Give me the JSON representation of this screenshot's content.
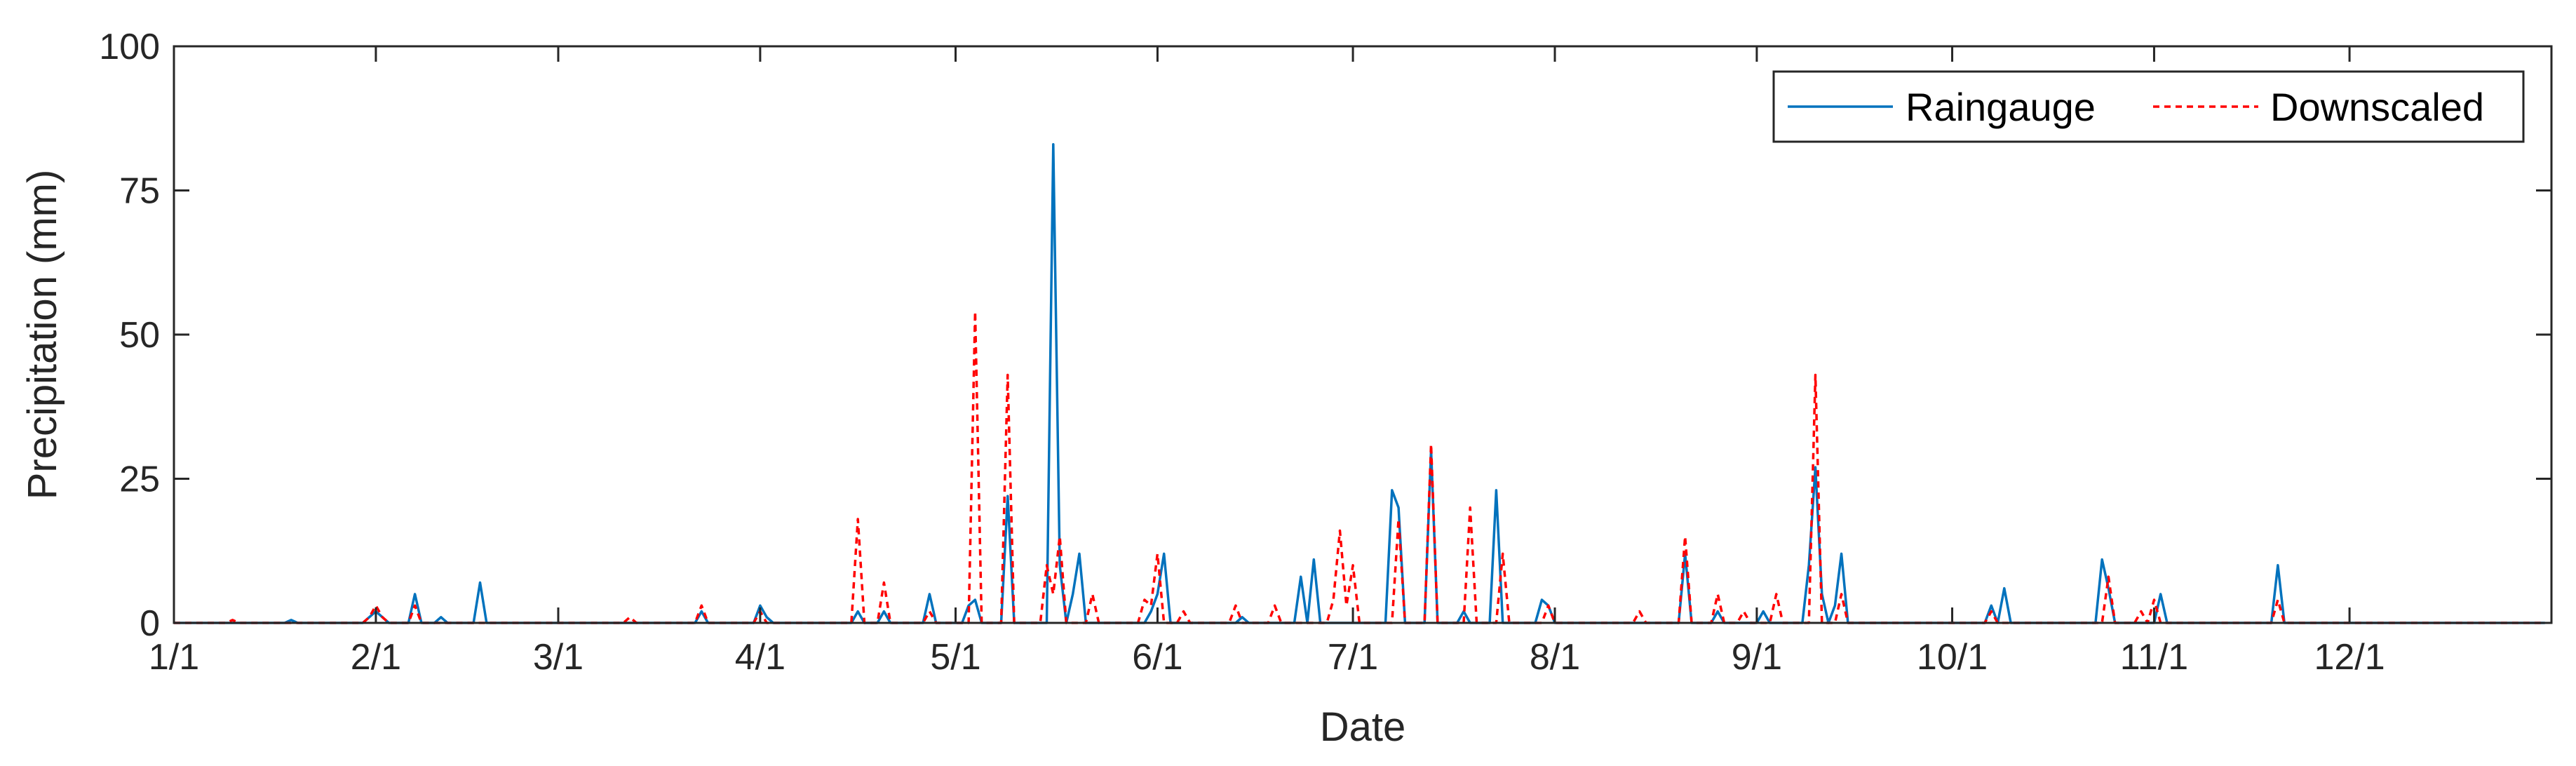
{
  "chart_data": {
    "type": "line",
    "title": "",
    "xlabel": "Date",
    "ylabel": "Precipitation (mm)",
    "xlim": [
      "1/1",
      "12/31"
    ],
    "ylim": [
      0,
      100
    ],
    "yticks": [
      0,
      25,
      50,
      75,
      100
    ],
    "xticks": [
      {
        "label": "1/1",
        "date": "1/1"
      },
      {
        "label": "2/1",
        "date": "2/1"
      },
      {
        "label": "3/1",
        "date": "3/1"
      },
      {
        "label": "4/1",
        "date": "4/1"
      },
      {
        "label": "5/1",
        "date": "5/1"
      },
      {
        "label": "6/1",
        "date": "6/1"
      },
      {
        "label": "7/1",
        "date": "7/1"
      },
      {
        "label": "8/1",
        "date": "8/1"
      },
      {
        "label": "9/1",
        "date": "9/1"
      },
      {
        "label": "10/1",
        "date": "10/1"
      },
      {
        "label": "11/1",
        "date": "11/1"
      },
      {
        "label": "12/1",
        "date": "12/1"
      }
    ],
    "grid": false,
    "legend_position": "top-right",
    "series": [
      {
        "name": "Raingauge",
        "color": "#0072BD",
        "style": "solid",
        "points": [
          [
            "1/1",
            0
          ],
          [
            "1/18",
            0
          ],
          [
            "1/19",
            0.5
          ],
          [
            "1/20",
            0
          ],
          [
            "1/30",
            0
          ],
          [
            "1/31",
            1
          ],
          [
            "2/1",
            2
          ],
          [
            "2/2",
            1
          ],
          [
            "2/3",
            0
          ],
          [
            "2/6",
            0
          ],
          [
            "2/7",
            5
          ],
          [
            "2/8",
            0
          ],
          [
            "2/10",
            0
          ],
          [
            "2/11",
            1
          ],
          [
            "2/12",
            0
          ],
          [
            "2/16",
            0
          ],
          [
            "2/17",
            7
          ],
          [
            "2/18",
            0
          ],
          [
            "3/22",
            0
          ],
          [
            "3/23",
            2
          ],
          [
            "3/24",
            0
          ],
          [
            "3/31",
            0
          ],
          [
            "4/1",
            3
          ],
          [
            "4/2",
            1
          ],
          [
            "4/3",
            0
          ],
          [
            "4/15",
            0
          ],
          [
            "4/16",
            2
          ],
          [
            "4/17",
            0
          ],
          [
            "4/19",
            0
          ],
          [
            "4/20",
            2
          ],
          [
            "4/21",
            0
          ],
          [
            "4/26",
            0
          ],
          [
            "4/27",
            5
          ],
          [
            "4/28",
            0
          ],
          [
            "5/2",
            0
          ],
          [
            "5/3",
            3
          ],
          [
            "5/4",
            4
          ],
          [
            "5/5",
            0
          ],
          [
            "5/8",
            0
          ],
          [
            "5/9",
            22
          ],
          [
            "5/10",
            0
          ],
          [
            "5/15",
            0
          ],
          [
            "5/16",
            83
          ],
          [
            "5/17",
            10
          ],
          [
            "5/18",
            0
          ],
          [
            "5/19",
            5
          ],
          [
            "5/20",
            12
          ],
          [
            "5/21",
            0
          ],
          [
            "5/30",
            0
          ],
          [
            "5/31",
            2
          ],
          [
            "6/1",
            5
          ],
          [
            "6/2",
            12
          ],
          [
            "6/3",
            0
          ],
          [
            "6/13",
            0
          ],
          [
            "6/14",
            1
          ],
          [
            "6/15",
            0
          ],
          [
            "6/22",
            0
          ],
          [
            "6/23",
            8
          ],
          [
            "6/24",
            0
          ],
          [
            "6/25",
            11
          ],
          [
            "6/26",
            0
          ],
          [
            "7/6",
            0
          ],
          [
            "7/7",
            23
          ],
          [
            "7/8",
            20
          ],
          [
            "7/9",
            0
          ],
          [
            "7/12",
            0
          ],
          [
            "7/13",
            30
          ],
          [
            "7/14",
            0
          ],
          [
            "7/17",
            0
          ],
          [
            "7/18",
            2
          ],
          [
            "7/19",
            0
          ],
          [
            "7/22",
            0
          ],
          [
            "7/23",
            23
          ],
          [
            "7/24",
            0
          ],
          [
            "7/29",
            0
          ],
          [
            "7/30",
            4
          ],
          [
            "7/31",
            3
          ],
          [
            "8/1",
            0
          ],
          [
            "8/20",
            0
          ],
          [
            "8/21",
            12
          ],
          [
            "8/22",
            0
          ],
          [
            "8/25",
            0
          ],
          [
            "8/26",
            2
          ],
          [
            "8/27",
            0
          ],
          [
            "9/1",
            0
          ],
          [
            "9/2",
            2
          ],
          [
            "9/3",
            0
          ],
          [
            "9/8",
            0
          ],
          [
            "9/9",
            10
          ],
          [
            "9/10",
            27
          ],
          [
            "9/11",
            5
          ],
          [
            "9/12",
            0
          ],
          [
            "9/13",
            3
          ],
          [
            "9/14",
            12
          ],
          [
            "9/15",
            0
          ],
          [
            "10/6",
            0
          ],
          [
            "10/7",
            3
          ],
          [
            "10/8",
            0
          ],
          [
            "10/9",
            6
          ],
          [
            "10/10",
            0
          ],
          [
            "10/23",
            0
          ],
          [
            "10/24",
            11
          ],
          [
            "10/25",
            6
          ],
          [
            "10/26",
            0
          ],
          [
            "11/1",
            0
          ],
          [
            "11/2",
            5
          ],
          [
            "11/3",
            0
          ],
          [
            "11/19",
            0
          ],
          [
            "11/20",
            10
          ],
          [
            "11/21",
            0
          ],
          [
            "12/31",
            0
          ]
        ]
      },
      {
        "name": "Downscaled",
        "color": "#FF0000",
        "style": "dashed",
        "points": [
          [
            "1/1",
            0
          ],
          [
            "1/9",
            0
          ],
          [
            "1/10",
            0.5
          ],
          [
            "1/11",
            0
          ],
          [
            "1/30",
            0
          ],
          [
            "1/31",
            1
          ],
          [
            "2/1",
            3
          ],
          [
            "2/2",
            1
          ],
          [
            "2/3",
            0
          ],
          [
            "2/6",
            0
          ],
          [
            "2/7",
            3
          ],
          [
            "2/8",
            0
          ],
          [
            "3/11",
            0
          ],
          [
            "3/12",
            1
          ],
          [
            "3/13",
            0
          ],
          [
            "3/22",
            0
          ],
          [
            "3/23",
            3
          ],
          [
            "3/24",
            0
          ],
          [
            "3/31",
            0
          ],
          [
            "4/1",
            2
          ],
          [
            "4/2",
            0
          ],
          [
            "4/15",
            0
          ],
          [
            "4/16",
            18
          ],
          [
            "4/17",
            0
          ],
          [
            "4/19",
            0
          ],
          [
            "4/20",
            7
          ],
          [
            "4/21",
            0
          ],
          [
            "4/26",
            0
          ],
          [
            "4/27",
            2
          ],
          [
            "4/28",
            0
          ],
          [
            "5/3",
            0
          ],
          [
            "5/4",
            54
          ],
          [
            "5/5",
            0
          ],
          [
            "5/8",
            0
          ],
          [
            "5/9",
            43
          ],
          [
            "5/10",
            0
          ],
          [
            "5/14",
            0
          ],
          [
            "5/15",
            10
          ],
          [
            "5/16",
            5
          ],
          [
            "5/17",
            15
          ],
          [
            "5/18",
            0
          ],
          [
            "5/21",
            0
          ],
          [
            "5/22",
            5
          ],
          [
            "5/23",
            0
          ],
          [
            "5/29",
            0
          ],
          [
            "5/30",
            4
          ],
          [
            "5/31",
            3
          ],
          [
            "6/1",
            12
          ],
          [
            "6/2",
            0
          ],
          [
            "6/4",
            0
          ],
          [
            "6/5",
            2
          ],
          [
            "6/6",
            0
          ],
          [
            "6/12",
            0
          ],
          [
            "6/13",
            3
          ],
          [
            "6/14",
            0
          ],
          [
            "6/18",
            0
          ],
          [
            "6/19",
            3
          ],
          [
            "6/20",
            0
          ],
          [
            "6/27",
            0
          ],
          [
            "6/28",
            4
          ],
          [
            "6/29",
            16
          ],
          [
            "6/30",
            3
          ],
          [
            "7/1",
            10
          ],
          [
            "7/2",
            0
          ],
          [
            "7/7",
            0
          ],
          [
            "7/8",
            18
          ],
          [
            "7/9",
            0
          ],
          [
            "7/12",
            0
          ],
          [
            "7/13",
            31
          ],
          [
            "7/14",
            0
          ],
          [
            "7/18",
            0
          ],
          [
            "7/19",
            20
          ],
          [
            "7/20",
            0
          ],
          [
            "7/23",
            0
          ],
          [
            "7/24",
            12
          ],
          [
            "7/25",
            0
          ],
          [
            "7/30",
            0
          ],
          [
            "7/31",
            3
          ],
          [
            "8/1",
            0
          ],
          [
            "8/13",
            0
          ],
          [
            "8/14",
            2
          ],
          [
            "8/15",
            0
          ],
          [
            "8/20",
            0
          ],
          [
            "8/21",
            15
          ],
          [
            "8/22",
            0
          ],
          [
            "8/25",
            0
          ],
          [
            "8/26",
            5
          ],
          [
            "8/27",
            0
          ],
          [
            "8/29",
            0
          ],
          [
            "8/30",
            2
          ],
          [
            "8/31",
            0
          ],
          [
            "9/3",
            0
          ],
          [
            "9/4",
            5
          ],
          [
            "9/5",
            0
          ],
          [
            "9/9",
            0
          ],
          [
            "9/10",
            43
          ],
          [
            "9/11",
            0
          ],
          [
            "9/13",
            0
          ],
          [
            "9/14",
            5
          ],
          [
            "9/15",
            0
          ],
          [
            "10/6",
            0
          ],
          [
            "10/7",
            2
          ],
          [
            "10/8",
            0
          ],
          [
            "10/24",
            0
          ],
          [
            "10/25",
            8
          ],
          [
            "10/26",
            0
          ],
          [
            "10/29",
            0
          ],
          [
            "10/30",
            2
          ],
          [
            "10/31",
            0
          ],
          [
            "11/1",
            4
          ],
          [
            "11/2",
            0
          ],
          [
            "11/19",
            0
          ],
          [
            "11/20",
            4
          ],
          [
            "11/21",
            0
          ],
          [
            "12/31",
            0
          ]
        ]
      }
    ]
  }
}
